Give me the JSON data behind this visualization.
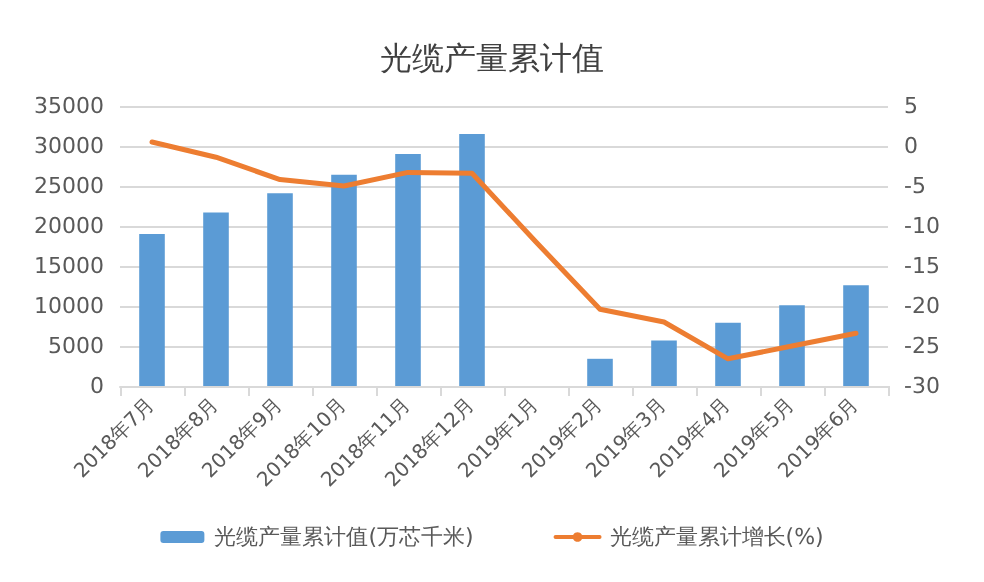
{
  "chart_data": {
    "type": "bar",
    "title": "光缆产量累计值",
    "categories": [
      "2018年7月",
      "2018年8月",
      "2018年9月",
      "2018年10月",
      "2018年11月",
      "2018年12月",
      "2019年1月",
      "2019年2月",
      "2019年3月",
      "2019年4月",
      "2019年5月",
      "2019年6月"
    ],
    "series": [
      {
        "name": "光缆产量累计值(万芯千米)",
        "color": "#5b9bd5",
        "values": [
          19000,
          21700,
          24100,
          26400,
          29000,
          31500,
          null,
          3400,
          5700,
          7900,
          10100,
          12600
        ]
      },
      {
        "name": "光缆产量累计增长(%)",
        "type": "line",
        "axis": "y2",
        "color": "#ed7d31",
        "values": [
          0.5,
          -1.4,
          -4.2,
          -5.0,
          -3.3,
          -3.4,
          -12,
          -20.4,
          -22,
          -26.6,
          -25,
          -23.4
        ]
      }
    ],
    "ylim": [
      0,
      35000
    ],
    "yticks": [
      0,
      5000,
      10000,
      15000,
      20000,
      25000,
      30000,
      35000
    ],
    "y2lim": [
      -30,
      5
    ],
    "y2ticks": [
      -30,
      -25,
      -20,
      -15,
      -10,
      -5,
      0,
      5
    ],
    "grid": "y",
    "legend": "bottom",
    "marker": "none",
    "line_style": "solid"
  }
}
